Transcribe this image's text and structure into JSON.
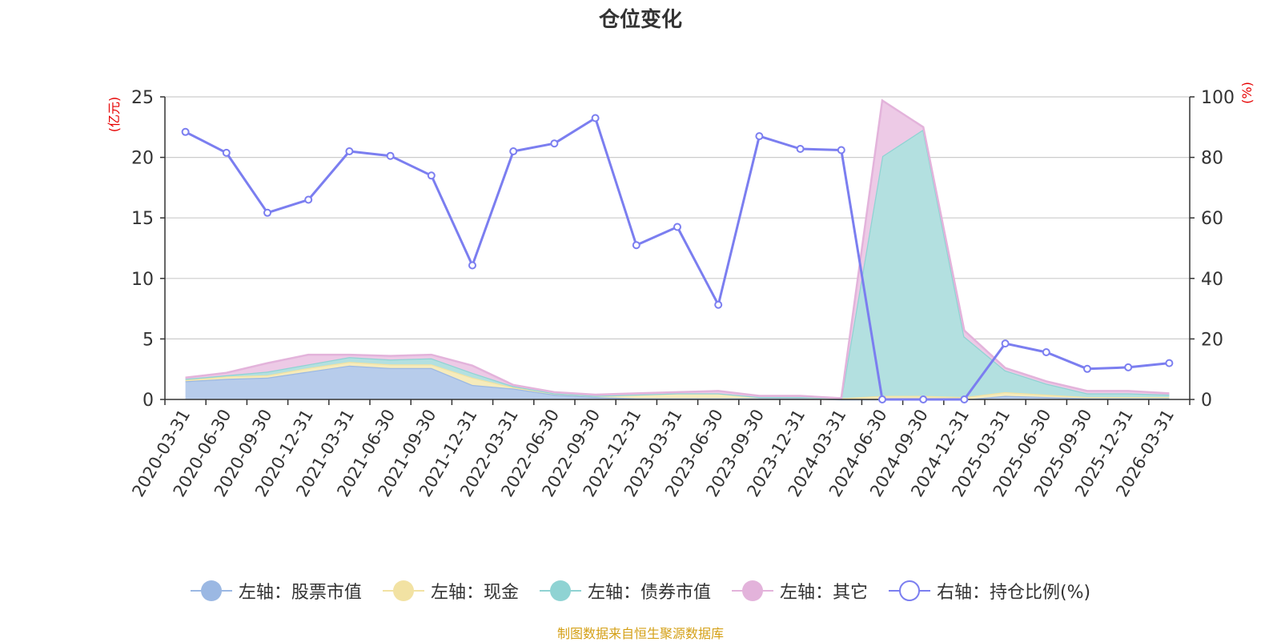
{
  "chart_data": {
    "type": "area",
    "title": "仓位变化",
    "source": "制图数据来自恒生聚源数据库",
    "left_axis": {
      "unit": "(亿元)",
      "min": 0,
      "max": 25,
      "ticks": [
        0,
        5,
        10,
        15,
        20,
        25
      ]
    },
    "right_axis": {
      "unit": "(%)",
      "min": 0,
      "max": 100,
      "ticks": [
        0,
        20,
        40,
        60,
        80,
        100
      ]
    },
    "x": [
      "2020-03-31",
      "2020-06-30",
      "2020-09-30",
      "2020-12-31",
      "2021-03-31",
      "2021-06-30",
      "2021-09-30",
      "2021-12-31",
      "2022-03-31",
      "2022-06-30",
      "2022-09-30",
      "2022-12-31",
      "2023-03-31",
      "2023-06-30",
      "2023-09-30",
      "2023-12-31",
      "2024-03-31",
      "2024-06-30",
      "2024-09-30",
      "2024-12-31",
      "2025-03-31",
      "2025-06-30",
      "2025-09-30",
      "2025-12-31",
      "2026-03-31"
    ],
    "grid": true,
    "legend_position": "bottom",
    "series": [
      {
        "name": "左轴：股票市值",
        "axis": "left",
        "stacked": true,
        "color": "#9bb8e3",
        "fill": "#b7cceb",
        "values": [
          1.5,
          1.7,
          1.8,
          2.3,
          2.8,
          2.6,
          2.6,
          1.2,
          0.9,
          0.4,
          0.2,
          0.1,
          0.1,
          0.1,
          0.1,
          0.1,
          0.0,
          0.0,
          0.0,
          0.0,
          0.3,
          0.2,
          0.1,
          0.1,
          0.1
        ]
      },
      {
        "name": "左轴：现金",
        "axis": "left",
        "stacked": true,
        "color": "#f2e2a3",
        "fill": "#f6ebbb",
        "values": [
          0.1,
          0.2,
          0.2,
          0.3,
          0.3,
          0.3,
          0.3,
          0.6,
          0.1,
          0.1,
          0.1,
          0.3,
          0.4,
          0.4,
          0.1,
          0.1,
          0.1,
          0.3,
          0.3,
          0.2,
          0.3,
          0.2,
          0.1,
          0.1,
          0.1
        ]
      },
      {
        "name": "左轴：债券市值",
        "axis": "left",
        "stacked": true,
        "color": "#8fd3d3",
        "fill": "#b3e0e0",
        "values": [
          0.1,
          0.1,
          0.3,
          0.3,
          0.4,
          0.4,
          0.5,
          0.4,
          0.1,
          0.0,
          0.0,
          0.0,
          0.0,
          0.0,
          0.0,
          0.0,
          0.0,
          19.8,
          22.0,
          5.0,
          1.8,
          0.9,
          0.3,
          0.3,
          0.2
        ]
      },
      {
        "name": "左轴：其它",
        "axis": "left",
        "stacked": true,
        "color": "#e3b3db",
        "fill": "#edcae6",
        "values": [
          0.1,
          0.2,
          0.7,
          0.8,
          0.2,
          0.3,
          0.3,
          0.6,
          0.1,
          0.1,
          0.1,
          0.1,
          0.1,
          0.2,
          0.1,
          0.1,
          0.0,
          4.6,
          0.2,
          0.5,
          0.2,
          0.2,
          0.2,
          0.2,
          0.1
        ]
      },
      {
        "name": "右轴：持仓比例(%)",
        "axis": "right",
        "type": "line",
        "color": "#7b7ef0",
        "values": [
          88.4,
          81.5,
          61.7,
          66.0,
          82.0,
          80.5,
          74.0,
          44.3,
          82.0,
          84.6,
          93.0,
          51.0,
          57.0,
          31.3,
          87.0,
          82.8,
          82.4,
          0.0,
          0.0,
          0.0,
          18.5,
          15.6,
          10.1,
          10.6,
          12.0
        ]
      }
    ]
  }
}
